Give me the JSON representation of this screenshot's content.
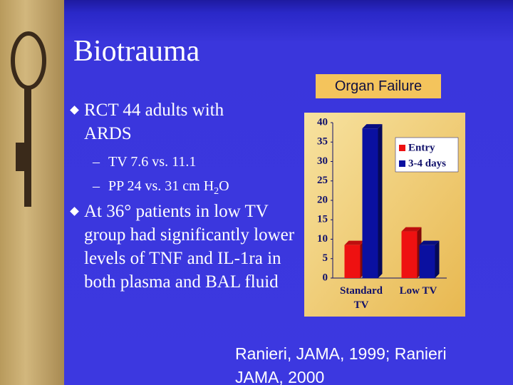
{
  "slide": {
    "title": "Biotrauma",
    "bullets": [
      {
        "text": "RCT 44 adults with ARDS",
        "sub": [
          {
            "text": "TV 7.6 vs. 11.1"
          },
          {
            "text": "PP 24 vs. 31 cm H",
            "subscript": "2",
            "after": "O"
          }
        ]
      },
      {
        "text": "At 36° patients in low TV group had significantly lower levels of TNF and IL-1ra in both plasma and BAL fluid"
      }
    ],
    "citation": "Ranieri, JAMA, 1999; Ranieri JAMA, 2000"
  },
  "chart_data": {
    "type": "bar",
    "title": "Organ Failure",
    "categories": [
      "Standard TV",
      "Low TV"
    ],
    "series": [
      {
        "name": "Entry",
        "color": "#ee1111",
        "values": [
          8.5,
          12
        ]
      },
      {
        "name": "3-4 days",
        "color": "#0a10a0",
        "values": [
          38.5,
          8.5
        ]
      }
    ],
    "ylim": [
      0,
      40
    ],
    "yticks": [
      0,
      5,
      10,
      15,
      20,
      25,
      30,
      35,
      40
    ],
    "legend": "upper right"
  }
}
